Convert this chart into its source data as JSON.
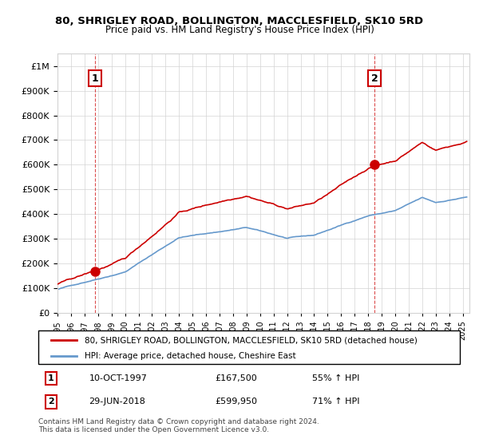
{
  "title": "80, SHRIGLEY ROAD, BOLLINGTON, MACCLESFIELD, SK10 5RD",
  "subtitle": "Price paid vs. HM Land Registry's House Price Index (HPI)",
  "legend_line1": "80, SHRIGLEY ROAD, BOLLINGTON, MACCLESFIELD, SK10 5RD (detached house)",
  "legend_line2": "HPI: Average price, detached house, Cheshire East",
  "annotation1_num": "1",
  "annotation1_date": "10-OCT-1997",
  "annotation1_price": "£167,500",
  "annotation1_hpi": "55% ↑ HPI",
  "annotation2_num": "2",
  "annotation2_date": "29-JUN-2018",
  "annotation2_price": "£599,950",
  "annotation2_hpi": "71% ↑ HPI",
  "footnote": "Contains HM Land Registry data © Crown copyright and database right 2024.\nThis data is licensed under the Open Government Licence v3.0.",
  "sale1_year": 1997.78,
  "sale1_price": 167500,
  "sale2_year": 2018.49,
  "sale2_price": 599950,
  "red_line_color": "#cc0000",
  "blue_line_color": "#6699cc",
  "background_color": "#ffffff",
  "ylim": [
    0,
    1000000
  ],
  "xlim": [
    1995,
    2025.5
  ]
}
